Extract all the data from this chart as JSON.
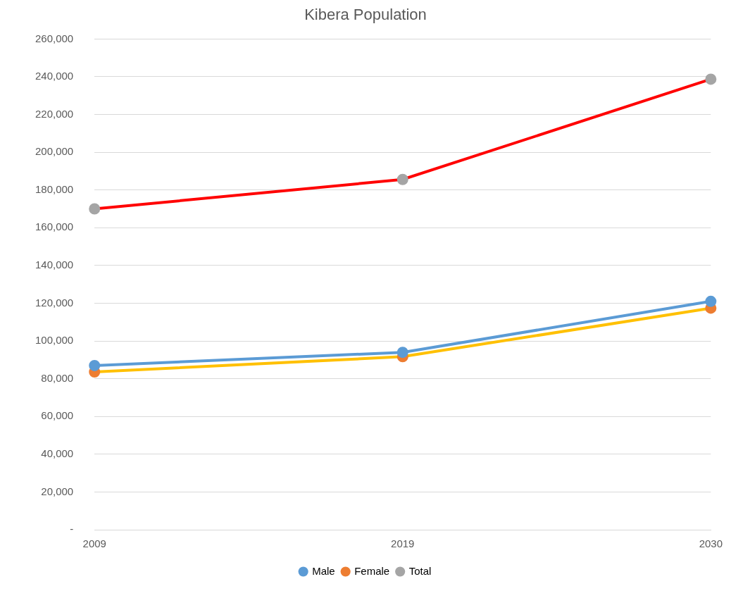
{
  "chart_data": {
    "type": "line",
    "title": "Kibera Population",
    "categories": [
      "2009",
      "2019",
      "2030"
    ],
    "series": [
      {
        "name": "Male",
        "color": "#5b9bd5",
        "colors": [
          "#5b9bd5",
          "#5b9bd5",
          "#5b9bd5"
        ],
        "values": [
          87000,
          94000,
          121000
        ]
      },
      {
        "name": "Female",
        "color": "#ffc000",
        "colors": [
          "#ed7d31",
          "#ed7d31",
          "#ed7d31"
        ],
        "values": [
          83600,
          91700,
          117400
        ]
      },
      {
        "name": "Total",
        "color": "#ff0000",
        "colors": [
          "#a5a5a5",
          "#a5a5a5",
          "#a5a5a5"
        ],
        "values": [
          170000,
          185600,
          238700
        ]
      }
    ],
    "ylim": [
      0,
      260000
    ],
    "yticks": [
      {
        "value": 0,
        "label": "-"
      },
      {
        "value": 20000,
        "label": "20,000"
      },
      {
        "value": 40000,
        "label": "40,000"
      },
      {
        "value": 60000,
        "label": "60,000"
      },
      {
        "value": 80000,
        "label": "80,000"
      },
      {
        "value": 100000,
        "label": "100,000"
      },
      {
        "value": 120000,
        "label": "120,000"
      },
      {
        "value": 140000,
        "label": "140,000"
      },
      {
        "value": 160000,
        "label": "160,000"
      },
      {
        "value": 180000,
        "label": "180,000"
      },
      {
        "value": 200000,
        "label": "200,000"
      },
      {
        "value": 220000,
        "label": "220,000"
      },
      {
        "value": 240000,
        "label": "240,000"
      },
      {
        "value": 260000,
        "label": "260,000"
      }
    ],
    "grid": "y",
    "legend": "bottom",
    "marker": "circle",
    "line_style": "solid"
  }
}
